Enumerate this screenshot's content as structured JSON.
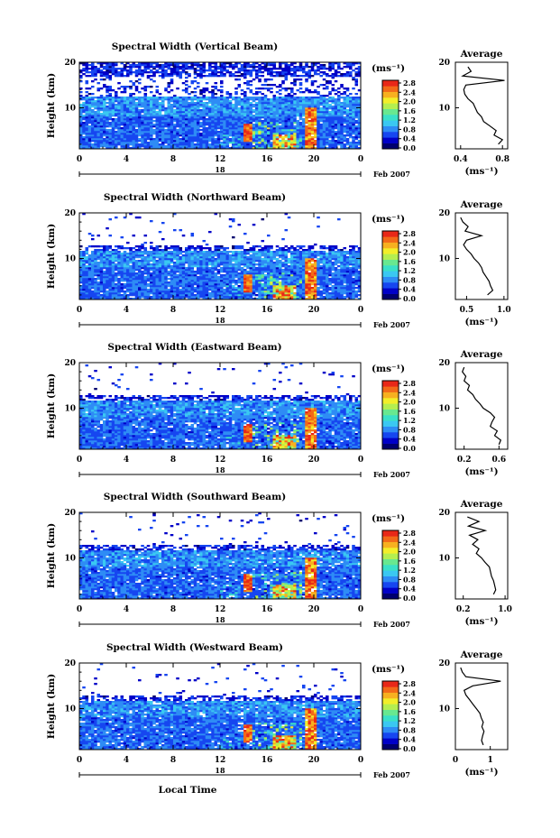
{
  "figure": {
    "xlabel": "Local Time",
    "date_label": "Feb 2007",
    "day_label": "18",
    "unit_label": "(ms⁻¹)",
    "average_title": "Average",
    "ylabel": "Height (km)"
  },
  "colorbar": {
    "ticks": [
      "2.8",
      "2.4",
      "2.0",
      "1.6",
      "1.2",
      "0.8",
      "0.4",
      "0.0"
    ],
    "colors": [
      "#00006f",
      "#0000c8",
      "#1646f0",
      "#2e8cf5",
      "#3ac8f2",
      "#3ae0c8",
      "#68e890",
      "#b4ee50",
      "#f2ee2a",
      "#f7b020",
      "#f26a18",
      "#e82818"
    ]
  },
  "chart_data": [
    {
      "type": "heatmap",
      "title": "Spectral Width (Vertical Beam)",
      "xlabel": "Local Time",
      "ylabel": "Height (km)",
      "x_ticks": [
        "0",
        "4",
        "8",
        "12",
        "16",
        "20",
        "0"
      ],
      "y_ticks": [
        "20",
        "10"
      ],
      "xlim": [
        0,
        24
      ],
      "ylim": [
        1,
        20
      ],
      "clim": [
        0,
        2.8
      ],
      "profile": {
        "title": "Average",
        "xlabel": "(ms⁻¹)",
        "x_ticks": [
          "0.4",
          "0.8"
        ],
        "y_ticks": [
          "20",
          "10"
        ],
        "xlim": [
          0.35,
          0.85
        ],
        "height_km": [
          2,
          3,
          4,
          5,
          6,
          7,
          8,
          9,
          10,
          11,
          12,
          13,
          14,
          15,
          16,
          17,
          18,
          19
        ],
        "values": [
          0.76,
          0.8,
          0.72,
          0.74,
          0.68,
          0.62,
          0.6,
          0.56,
          0.54,
          0.52,
          0.47,
          0.44,
          0.43,
          0.45,
          0.82,
          0.42,
          0.5,
          0.47
        ]
      }
    },
    {
      "type": "heatmap",
      "title": "Spectral Width (Northward Beam)",
      "xlabel": "Local Time",
      "ylabel": "Height (km)",
      "x_ticks": [
        "0",
        "4",
        "8",
        "12",
        "16",
        "20",
        "0"
      ],
      "y_ticks": [
        "20",
        "10"
      ],
      "xlim": [
        0,
        24
      ],
      "ylim": [
        1,
        20
      ],
      "clim": [
        0,
        2.8
      ],
      "profile": {
        "title": "Average",
        "xlabel": "(ms⁻¹)",
        "x_ticks": [
          "0.5",
          "1.0"
        ],
        "y_ticks": [
          "20",
          "10"
        ],
        "xlim": [
          0.35,
          1.05
        ],
        "height_km": [
          2,
          3,
          4,
          5,
          6,
          7,
          8,
          9,
          10,
          11,
          12,
          13,
          14,
          15,
          16,
          17,
          18,
          19
        ],
        "values": [
          0.78,
          0.85,
          0.82,
          0.8,
          0.76,
          0.72,
          0.7,
          0.66,
          0.6,
          0.56,
          0.5,
          0.46,
          0.5,
          0.7,
          0.48,
          0.52,
          0.45,
          0.42
        ]
      }
    },
    {
      "type": "heatmap",
      "title": "Spectral Width (Eastward Beam)",
      "xlabel": "Local Time",
      "ylabel": "Height (km)",
      "x_ticks": [
        "0",
        "4",
        "8",
        "12",
        "16",
        "20",
        "0"
      ],
      "y_ticks": [
        "20",
        "10"
      ],
      "xlim": [
        0,
        24
      ],
      "ylim": [
        1,
        20
      ],
      "clim": [
        0,
        2.8
      ],
      "profile": {
        "title": "Average",
        "xlabel": "(ms⁻¹)",
        "x_ticks": [
          "0.2",
          "0.6"
        ],
        "y_ticks": [
          "20",
          "10"
        ],
        "xlim": [
          0.1,
          0.7
        ],
        "height_km": [
          2,
          3,
          4,
          5,
          6,
          7,
          8,
          9,
          10,
          11,
          12,
          13,
          14,
          15,
          16,
          17,
          18,
          19
        ],
        "values": [
          0.6,
          0.62,
          0.55,
          0.58,
          0.5,
          0.52,
          0.55,
          0.5,
          0.42,
          0.38,
          0.33,
          0.3,
          0.24,
          0.26,
          0.2,
          0.22,
          0.18,
          0.2
        ]
      }
    },
    {
      "type": "heatmap",
      "title": "Spectral Width (Southward Beam)",
      "xlabel": "Local Time",
      "ylabel": "Height (km)",
      "x_ticks": [
        "0",
        "4",
        "8",
        "12",
        "16",
        "20",
        "0"
      ],
      "y_ticks": [
        "20",
        "10"
      ],
      "xlim": [
        0,
        24
      ],
      "ylim": [
        1,
        20
      ],
      "clim": [
        0,
        2.8
      ],
      "profile": {
        "title": "Average",
        "xlabel": "(ms⁻¹)",
        "x_ticks": [
          "0.2",
          "1.0"
        ],
        "y_ticks": [
          "20",
          "10"
        ],
        "xlim": [
          0.05,
          1.05
        ],
        "height_km": [
          2,
          3,
          4,
          5,
          6,
          7,
          8,
          9,
          10,
          11,
          12,
          13,
          14,
          15,
          16,
          17,
          18,
          19
        ],
        "values": [
          0.78,
          0.82,
          0.8,
          0.78,
          0.74,
          0.72,
          0.7,
          0.62,
          0.55,
          0.45,
          0.5,
          0.38,
          0.48,
          0.32,
          0.62,
          0.3,
          0.5,
          0.28
        ]
      }
    },
    {
      "type": "heatmap",
      "title": "Spectral Width (Westward Beam)",
      "xlabel": "Local Time",
      "ylabel": "Height (km)",
      "x_ticks": [
        "0",
        "4",
        "8",
        "12",
        "16",
        "20",
        "0"
      ],
      "y_ticks": [
        "20",
        "10"
      ],
      "xlim": [
        0,
        24
      ],
      "ylim": [
        1,
        20
      ],
      "clim": [
        0,
        2.8
      ],
      "profile": {
        "title": "Average",
        "xlabel": "(ms⁻¹)",
        "x_ticks": [
          "0",
          "1"
        ],
        "y_ticks": [
          "20",
          "10"
        ],
        "xlim": [
          0,
          1.5
        ],
        "height_km": [
          2,
          3,
          4,
          5,
          6,
          7,
          8,
          9,
          10,
          11,
          12,
          13,
          14,
          15,
          16,
          17,
          18,
          19
        ],
        "values": [
          0.8,
          0.75,
          0.78,
          0.82,
          0.76,
          0.8,
          0.74,
          0.7,
          0.6,
          0.5,
          0.4,
          0.3,
          0.25,
          0.5,
          1.3,
          0.3,
          0.2,
          0.15
        ]
      }
    }
  ]
}
